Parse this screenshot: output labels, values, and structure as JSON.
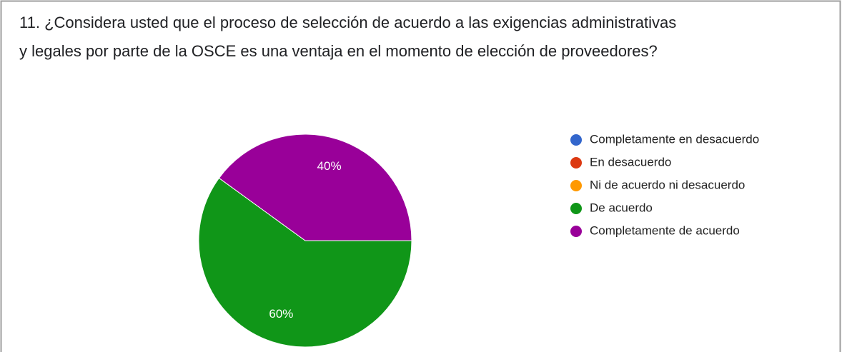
{
  "chart_data": {
    "type": "pie",
    "title": [
      "11. ¿Considera usted que el proceso de selección de acuerdo a las exigencias administrativas",
      "y legales por parte de la OSCE es una ventaja en el momento de elección de proveedores?"
    ],
    "categories": [
      "Completamente en desacuerdo",
      "En desacuerdo",
      "Ni de acuerdo ni desacuerdo",
      "De acuerdo",
      "Completamente de acuerdo"
    ],
    "values": [
      0,
      0,
      0,
      60,
      40
    ],
    "value_labels": [
      null,
      null,
      null,
      "60%",
      "40%"
    ],
    "colors": [
      "#3366cc",
      "#dc3912",
      "#ff9900",
      "#109618",
      "#990099"
    ],
    "legend": "right"
  }
}
